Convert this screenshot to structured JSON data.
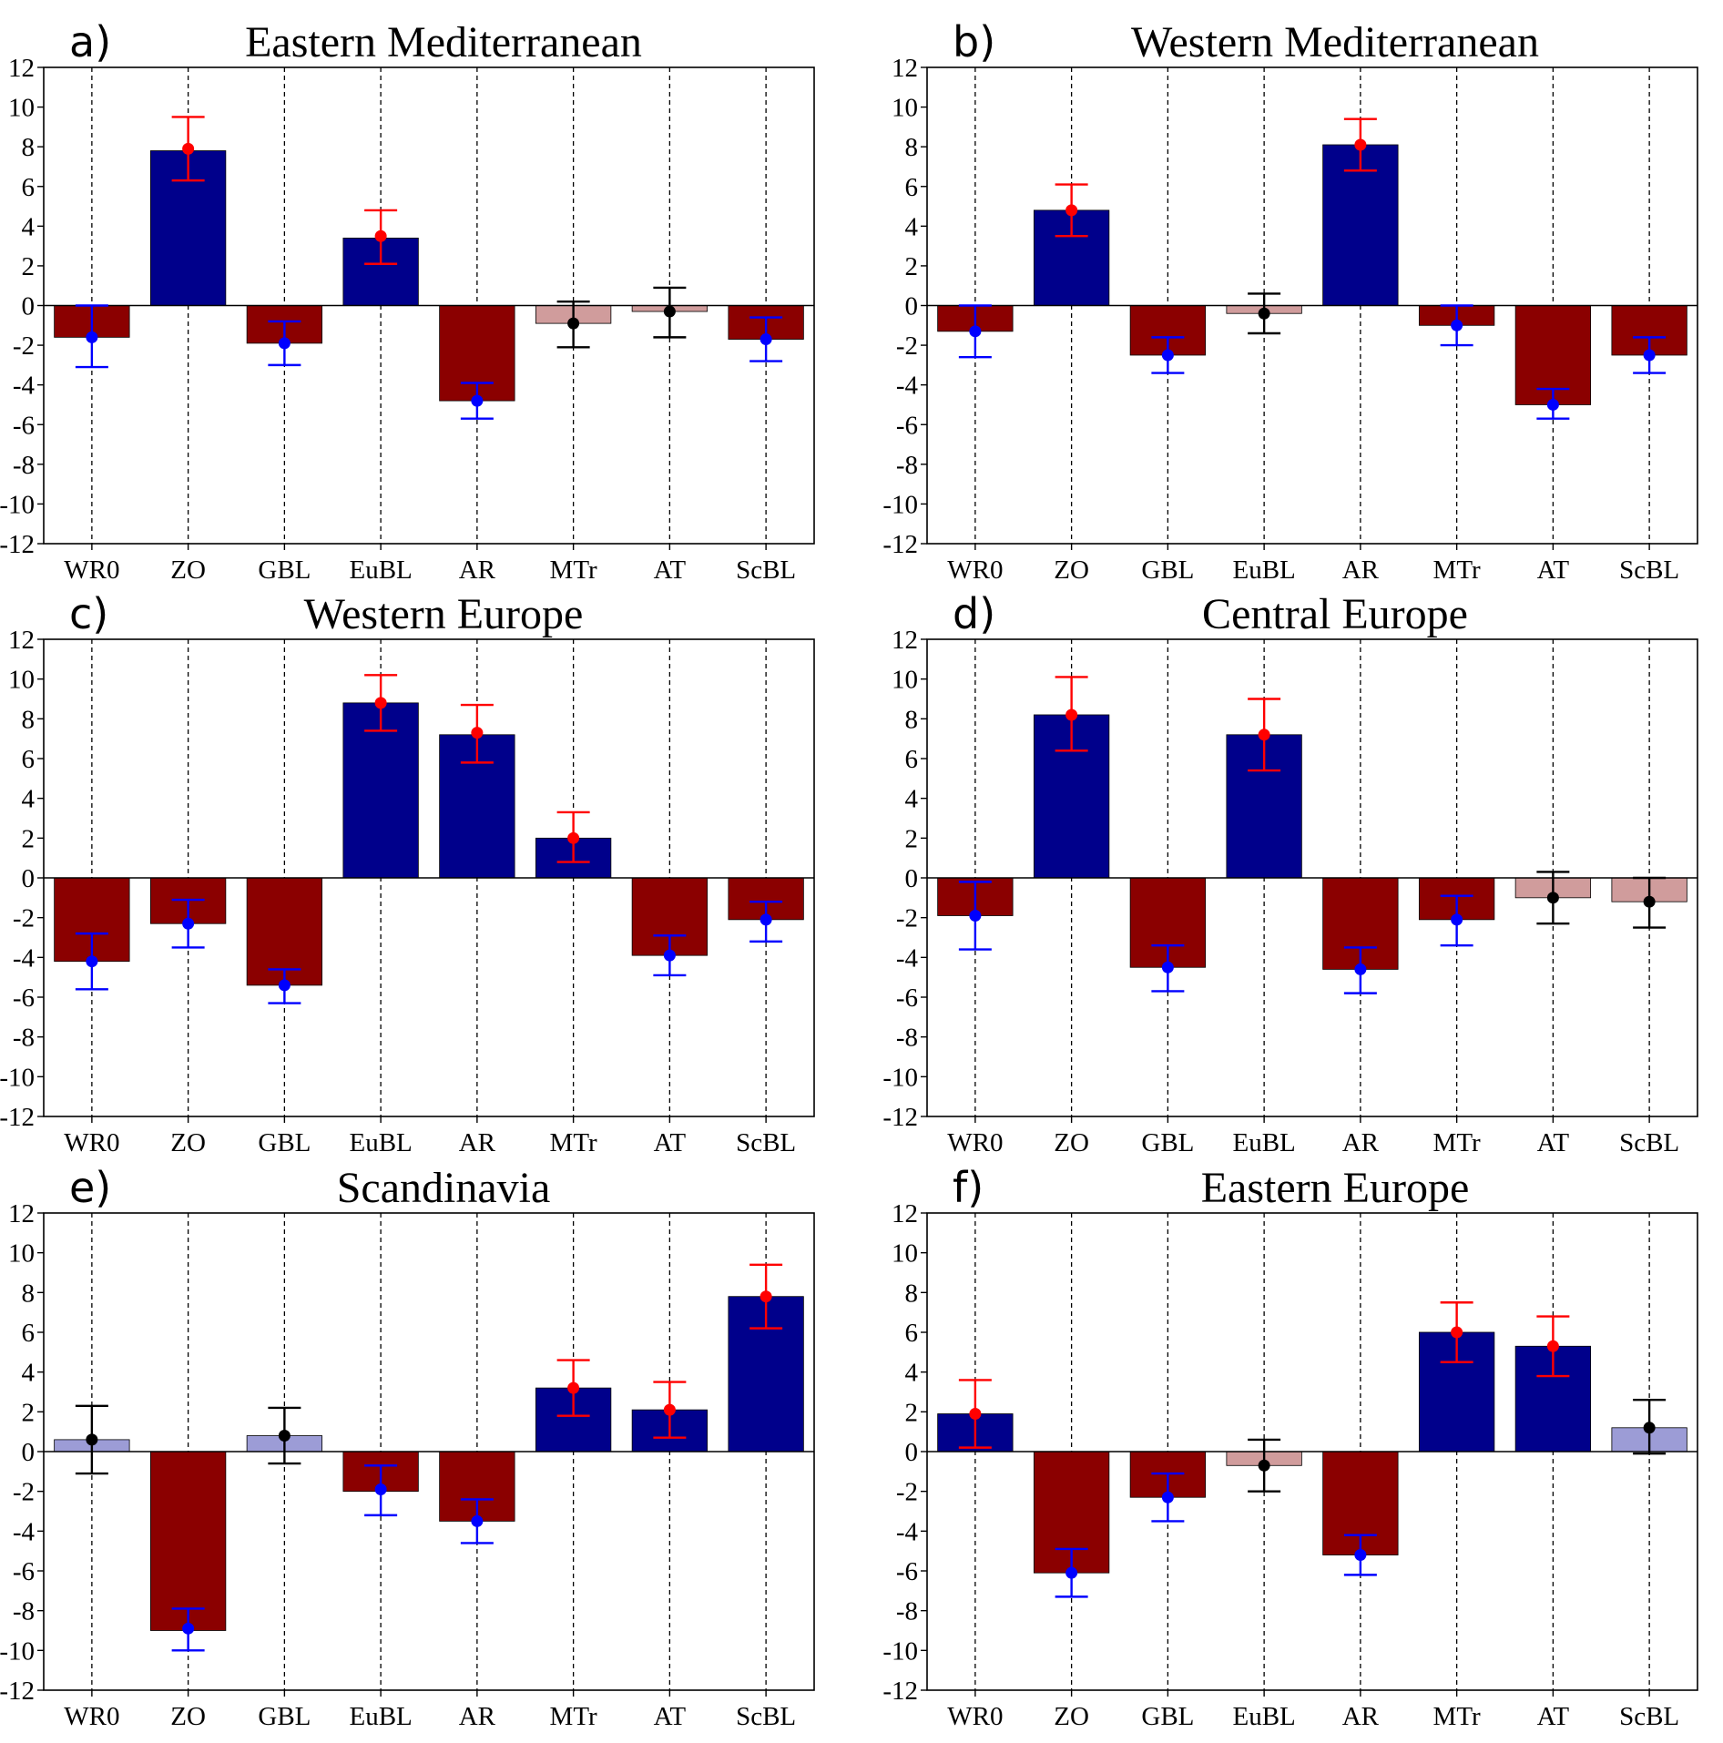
{
  "chart_data": [
    {
      "type": "bar",
      "panel_label": "a)",
      "title": "Eastern Mediterranean",
      "categories": [
        "WR0",
        "ZO",
        "GBL",
        "EuBL",
        "AR",
        "MTr",
        "AT",
        "ScBL"
      ],
      "values": [
        -1.6,
        7.8,
        -1.9,
        3.4,
        -4.8,
        -0.9,
        -0.3,
        -1.7
      ],
      "points": [
        -1.6,
        7.9,
        -1.9,
        3.5,
        -4.8,
        -0.9,
        -0.3,
        -1.7
      ],
      "error_low": [
        -3.1,
        6.3,
        -3.0,
        2.1,
        -5.7,
        -2.1,
        -1.6,
        -2.8
      ],
      "error_high": [
        0.0,
        9.5,
        -0.8,
        4.8,
        -3.9,
        0.2,
        0.9,
        -0.6
      ],
      "bar_colors": [
        "#8b0000",
        "#00008b",
        "#8b0000",
        "#00008b",
        "#8b0000",
        "#d09c9c",
        "#d09c9c",
        "#8b0000"
      ],
      "point_colors": [
        "#0000ff",
        "#ff0000",
        "#0000ff",
        "#ff0000",
        "#0000ff",
        "#000000",
        "#000000",
        "#0000ff"
      ],
      "ylim": [
        -12,
        12
      ],
      "yticks": [
        "12",
        "10",
        "8",
        "6",
        "4",
        "2",
        "0",
        "-2",
        "-4",
        "-6",
        "-8",
        "-10",
        "-12"
      ],
      "vertical_dashed_lines": true
    },
    {
      "type": "bar",
      "panel_label": "b)",
      "title": "Western Mediterranean",
      "categories": [
        "WR0",
        "ZO",
        "GBL",
        "EuBL",
        "AR",
        "MTr",
        "AT",
        "ScBL"
      ],
      "values": [
        -1.3,
        4.8,
        -2.5,
        -0.4,
        8.1,
        -1.0,
        -5.0,
        -2.5
      ],
      "points": [
        -1.3,
        4.8,
        -2.5,
        -0.4,
        8.1,
        -1.0,
        -5.0,
        -2.5
      ],
      "error_low": [
        -2.6,
        3.5,
        -3.4,
        -1.4,
        6.8,
        -2.0,
        -5.7,
        -3.4
      ],
      "error_high": [
        0.0,
        6.1,
        -1.6,
        0.6,
        9.4,
        0.0,
        -4.2,
        -1.6
      ],
      "bar_colors": [
        "#8b0000",
        "#00008b",
        "#8b0000",
        "#d09c9c",
        "#00008b",
        "#8b0000",
        "#8b0000",
        "#8b0000"
      ],
      "point_colors": [
        "#0000ff",
        "#ff0000",
        "#0000ff",
        "#000000",
        "#ff0000",
        "#0000ff",
        "#0000ff",
        "#0000ff"
      ],
      "ylim": [
        -12,
        12
      ],
      "yticks": [
        "12",
        "10",
        "8",
        "6",
        "4",
        "2",
        "0",
        "-2",
        "-4",
        "-6",
        "-8",
        "-10",
        "-12"
      ],
      "vertical_dashed_lines": true
    },
    {
      "type": "bar",
      "panel_label": "c)",
      "title": "Western Europe",
      "categories": [
        "WR0",
        "ZO",
        "GBL",
        "EuBL",
        "AR",
        "MTr",
        "AT",
        "ScBL"
      ],
      "values": [
        -4.2,
        -2.3,
        -5.4,
        8.8,
        7.2,
        2.0,
        -3.9,
        -2.1
      ],
      "points": [
        -4.2,
        -2.3,
        -5.4,
        8.8,
        7.3,
        2.0,
        -3.9,
        -2.1
      ],
      "error_low": [
        -5.6,
        -3.5,
        -6.3,
        7.4,
        5.8,
        0.8,
        -4.9,
        -3.2
      ],
      "error_high": [
        -2.8,
        -1.1,
        -4.6,
        10.2,
        8.7,
        3.3,
        -2.9,
        -1.2
      ],
      "bar_colors": [
        "#8b0000",
        "#8b0000",
        "#8b0000",
        "#00008b",
        "#00008b",
        "#00008b",
        "#8b0000",
        "#8b0000"
      ],
      "point_colors": [
        "#0000ff",
        "#0000ff",
        "#0000ff",
        "#ff0000",
        "#ff0000",
        "#ff0000",
        "#0000ff",
        "#0000ff"
      ],
      "ylim": [
        -12,
        12
      ],
      "yticks": [
        "12",
        "10",
        "8",
        "6",
        "4",
        "2",
        "0",
        "-2",
        "-4",
        "-6",
        "-8",
        "-10",
        "-12"
      ],
      "vertical_dashed_lines": true
    },
    {
      "type": "bar",
      "panel_label": "d)",
      "title": "Central Europe",
      "categories": [
        "WR0",
        "ZO",
        "GBL",
        "EuBL",
        "AR",
        "MTr",
        "AT",
        "ScBL"
      ],
      "values": [
        -1.9,
        8.2,
        -4.5,
        7.2,
        -4.6,
        -2.1,
        -1.0,
        -1.2
      ],
      "points": [
        -1.9,
        8.2,
        -4.5,
        7.2,
        -4.6,
        -2.1,
        -1.0,
        -1.2
      ],
      "error_low": [
        -3.6,
        6.4,
        -5.7,
        5.4,
        -5.8,
        -3.4,
        -2.3,
        -2.5
      ],
      "error_high": [
        -0.2,
        10.1,
        -3.4,
        9.0,
        -3.5,
        -0.9,
        0.3,
        0.0
      ],
      "bar_colors": [
        "#8b0000",
        "#00008b",
        "#8b0000",
        "#00008b",
        "#8b0000",
        "#8b0000",
        "#d09c9c",
        "#d09c9c"
      ],
      "point_colors": [
        "#0000ff",
        "#ff0000",
        "#0000ff",
        "#ff0000",
        "#0000ff",
        "#0000ff",
        "#000000",
        "#000000"
      ],
      "ylim": [
        -12,
        12
      ],
      "yticks": [
        "12",
        "10",
        "8",
        "6",
        "4",
        "2",
        "0",
        "-2",
        "-4",
        "-6",
        "-8",
        "-10",
        "-12"
      ],
      "vertical_dashed_lines": true
    },
    {
      "type": "bar",
      "panel_label": "e)",
      "title": "Scandinavia",
      "categories": [
        "WR0",
        "ZO",
        "GBL",
        "EuBL",
        "AR",
        "MTr",
        "AT",
        "ScBL"
      ],
      "values": [
        0.6,
        -9.0,
        0.8,
        -2.0,
        -3.5,
        3.2,
        2.1,
        7.8
      ],
      "points": [
        0.6,
        -8.9,
        0.8,
        -1.9,
        -3.5,
        3.2,
        2.1,
        7.8
      ],
      "error_low": [
        -1.1,
        -10.0,
        -0.6,
        -3.2,
        -4.6,
        1.8,
        0.7,
        6.2
      ],
      "error_high": [
        2.3,
        -7.9,
        2.2,
        -0.7,
        -2.4,
        4.6,
        3.5,
        9.4
      ],
      "bar_colors": [
        "#9c9cd6",
        "#8b0000",
        "#9c9cd6",
        "#8b0000",
        "#8b0000",
        "#00008b",
        "#00008b",
        "#00008b"
      ],
      "point_colors": [
        "#000000",
        "#0000ff",
        "#000000",
        "#0000ff",
        "#0000ff",
        "#ff0000",
        "#ff0000",
        "#ff0000"
      ],
      "ylim": [
        -12,
        12
      ],
      "yticks": [
        "12",
        "10",
        "8",
        "6",
        "4",
        "2",
        "0",
        "-2",
        "-4",
        "-6",
        "-8",
        "-10",
        "-12"
      ],
      "vertical_dashed_lines": true
    },
    {
      "type": "bar",
      "panel_label": "f)",
      "title": "Eastern Europe",
      "categories": [
        "WR0",
        "ZO",
        "GBL",
        "EuBL",
        "AR",
        "MTr",
        "AT",
        "ScBL"
      ],
      "values": [
        1.9,
        -6.1,
        -2.3,
        -0.7,
        -5.2,
        6.0,
        5.3,
        1.2
      ],
      "points": [
        1.9,
        -6.1,
        -2.3,
        -0.7,
        -5.2,
        6.0,
        5.3,
        1.2
      ],
      "error_low": [
        0.2,
        -7.3,
        -3.5,
        -2.0,
        -6.2,
        4.5,
        3.8,
        -0.1
      ],
      "error_high": [
        3.6,
        -4.9,
        -1.1,
        0.6,
        -4.2,
        7.5,
        6.8,
        2.6
      ],
      "bar_colors": [
        "#00008b",
        "#8b0000",
        "#8b0000",
        "#d09c9c",
        "#8b0000",
        "#00008b",
        "#00008b",
        "#9c9cd6"
      ],
      "point_colors": [
        "#ff0000",
        "#0000ff",
        "#0000ff",
        "#000000",
        "#0000ff",
        "#ff0000",
        "#ff0000",
        "#000000"
      ],
      "ylim": [
        -12,
        12
      ],
      "yticks": [
        "12",
        "10",
        "8",
        "6",
        "4",
        "2",
        "0",
        "-2",
        "-4",
        "-6",
        "-8",
        "-10",
        "-12"
      ],
      "vertical_dashed_lines": true
    }
  ]
}
